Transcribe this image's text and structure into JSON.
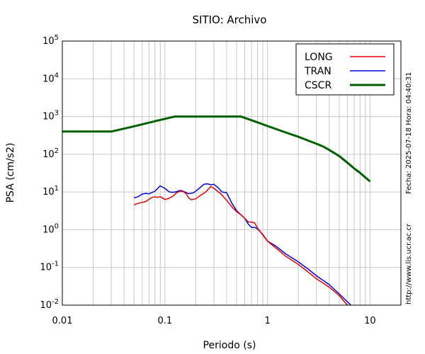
{
  "chart_data": {
    "type": "line",
    "title": "SITIO: Archivo",
    "xlabel": "Periodo (s)",
    "ylabel": "PSA (cm/s2)",
    "xscale": "log",
    "yscale": "log",
    "xlim": [
      0.01,
      20
    ],
    "ylim": [
      0.01,
      100000
    ],
    "grid": true,
    "legend_position": "top-right",
    "x_ticks": [
      {
        "value": 0.01,
        "label": "0.01"
      },
      {
        "value": 0.1,
        "label": "0.1"
      },
      {
        "value": 1,
        "label": "1"
      },
      {
        "value": 10,
        "label": "10"
      }
    ],
    "y_ticks": [
      {
        "value": 0.01,
        "base": "10",
        "exp": "-2"
      },
      {
        "value": 0.1,
        "base": "10",
        "exp": "-1"
      },
      {
        "value": 1,
        "base": "10",
        "exp": "0"
      },
      {
        "value": 10,
        "base": "10",
        "exp": "1"
      },
      {
        "value": 100,
        "base": "10",
        "exp": "2"
      },
      {
        "value": 1000,
        "base": "10",
        "exp": "3"
      },
      {
        "value": 10000,
        "base": "10",
        "exp": "4"
      },
      {
        "value": 100000,
        "base": "10",
        "exp": "5"
      }
    ],
    "series": [
      {
        "name": "LONG",
        "color": "#e60000",
        "width": 1.5,
        "points": [
          [
            0.05,
            4.6
          ],
          [
            0.055,
            5.0
          ],
          [
            0.06,
            5.3
          ],
          [
            0.065,
            5.6
          ],
          [
            0.07,
            6.4
          ],
          [
            0.075,
            7.2
          ],
          [
            0.08,
            7.4
          ],
          [
            0.085,
            7.2
          ],
          [
            0.09,
            7.5
          ],
          [
            0.1,
            6.3
          ],
          [
            0.11,
            6.8
          ],
          [
            0.12,
            7.8
          ],
          [
            0.13,
            9.5
          ],
          [
            0.14,
            10.5
          ],
          [
            0.15,
            10.3
          ],
          [
            0.16,
            9.2
          ],
          [
            0.17,
            7.0
          ],
          [
            0.18,
            6.2
          ],
          [
            0.2,
            6.6
          ],
          [
            0.22,
            8.0
          ],
          [
            0.25,
            10.0
          ],
          [
            0.28,
            14.0
          ],
          [
            0.3,
            12.5
          ],
          [
            0.35,
            9.0
          ],
          [
            0.4,
            6.0
          ],
          [
            0.45,
            4.0
          ],
          [
            0.5,
            3.0
          ],
          [
            0.55,
            2.5
          ],
          [
            0.6,
            2.0
          ],
          [
            0.65,
            1.6
          ],
          [
            0.7,
            1.6
          ],
          [
            0.75,
            1.5
          ],
          [
            0.8,
            1.1
          ],
          [
            0.9,
            0.72
          ],
          [
            1.0,
            0.5
          ],
          [
            1.2,
            0.33
          ],
          [
            1.5,
            0.2
          ],
          [
            2.0,
            0.12
          ],
          [
            2.5,
            0.075
          ],
          [
            3.0,
            0.05
          ],
          [
            4.0,
            0.03
          ],
          [
            5.0,
            0.018
          ],
          [
            6.0,
            0.01
          ]
        ]
      },
      {
        "name": "TRAN",
        "color": "#0000e0",
        "width": 1.5,
        "points": [
          [
            0.05,
            7.0
          ],
          [
            0.055,
            7.5
          ],
          [
            0.06,
            8.8
          ],
          [
            0.065,
            9.2
          ],
          [
            0.07,
            8.9
          ],
          [
            0.08,
            10.5
          ],
          [
            0.09,
            14.5
          ],
          [
            0.1,
            12.5
          ],
          [
            0.11,
            10.0
          ],
          [
            0.12,
            9.8
          ],
          [
            0.13,
            10.2
          ],
          [
            0.14,
            11.0
          ],
          [
            0.15,
            10.5
          ],
          [
            0.17,
            9.0
          ],
          [
            0.19,
            9.5
          ],
          [
            0.22,
            13.0
          ],
          [
            0.24,
            16.0
          ],
          [
            0.26,
            16.5
          ],
          [
            0.28,
            15.5
          ],
          [
            0.3,
            16.0
          ],
          [
            0.33,
            13.0
          ],
          [
            0.36,
            10.0
          ],
          [
            0.4,
            9.5
          ],
          [
            0.45,
            5.0
          ],
          [
            0.5,
            3.2
          ],
          [
            0.55,
            2.5
          ],
          [
            0.6,
            2.0
          ],
          [
            0.65,
            1.4
          ],
          [
            0.7,
            1.15
          ],
          [
            0.75,
            1.15
          ],
          [
            0.8,
            1.05
          ],
          [
            0.9,
            0.75
          ],
          [
            1.0,
            0.5
          ],
          [
            1.2,
            0.37
          ],
          [
            1.5,
            0.23
          ],
          [
            2.0,
            0.14
          ],
          [
            2.5,
            0.09
          ],
          [
            3.0,
            0.06
          ],
          [
            4.0,
            0.035
          ],
          [
            5.0,
            0.02
          ],
          [
            6.5,
            0.01
          ]
        ]
      },
      {
        "name": "CSCR",
        "color": "#006000",
        "width": 3,
        "points": [
          [
            0.01,
            400
          ],
          [
            0.03,
            400
          ],
          [
            0.05,
            550
          ],
          [
            0.08,
            750
          ],
          [
            0.125,
            1000
          ],
          [
            0.2,
            1000
          ],
          [
            0.3,
            1000
          ],
          [
            0.55,
            1000
          ],
          [
            0.8,
            700
          ],
          [
            1.0,
            560
          ],
          [
            1.5,
            380
          ],
          [
            2.0,
            290
          ],
          [
            2.5,
            230
          ],
          [
            3.0,
            190
          ],
          [
            3.5,
            160
          ],
          [
            4.0,
            130
          ],
          [
            5.0,
            90
          ],
          [
            6.0,
            60
          ],
          [
            7.0,
            42
          ],
          [
            8.0,
            32
          ],
          [
            10.0,
            19
          ]
        ]
      }
    ]
  },
  "side_labels": {
    "timestamp": "Fecha: 2025-07-18  Hora: 04:40:31",
    "url": "http://www.lis.ucr.ac.cr"
  }
}
